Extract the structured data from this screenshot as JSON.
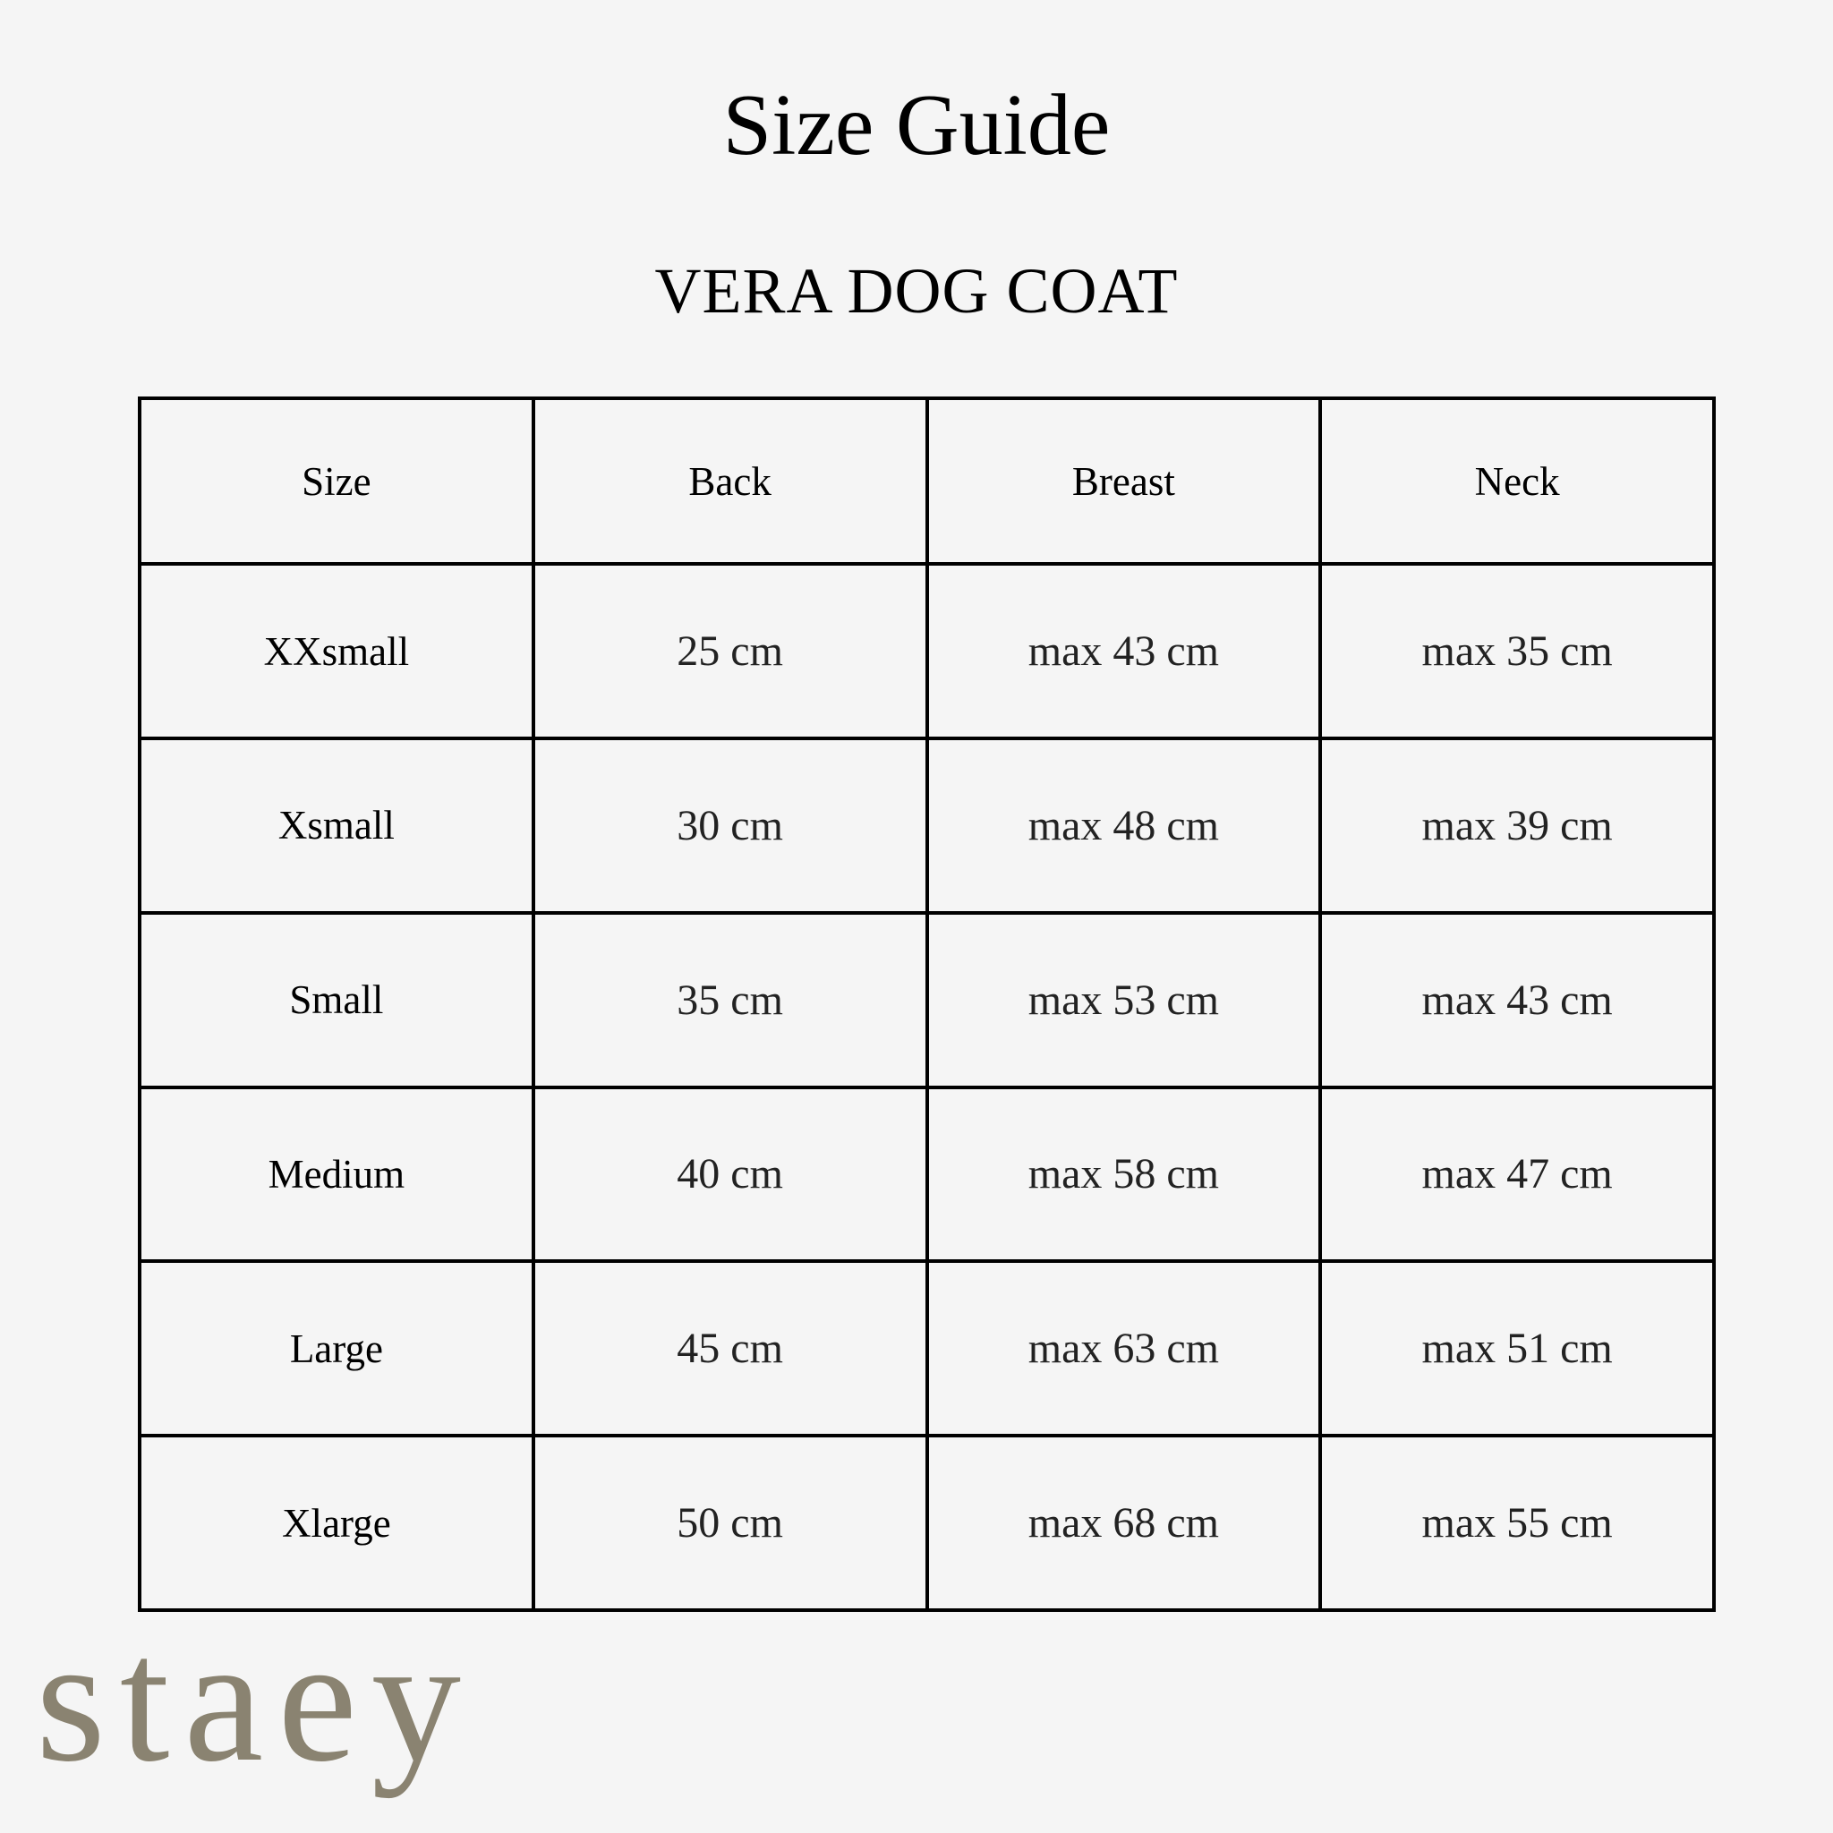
{
  "title": "Size Guide",
  "subtitle": "VERA DOG COAT",
  "table": {
    "headers": [
      "Size",
      "Back",
      "Breast",
      "Neck"
    ],
    "rows": [
      [
        "XXsmall",
        "25 cm",
        "max 43 cm",
        "max 35 cm"
      ],
      [
        "Xsmall",
        "30 cm",
        "max 48 cm",
        "max 39 cm"
      ],
      [
        "Small",
        "35 cm",
        "max 53 cm",
        "max 43 cm"
      ],
      [
        "Medium",
        "40 cm",
        "max 58 cm",
        "max 47 cm"
      ],
      [
        "Large",
        "45 cm",
        "max 63 cm",
        "max 51 cm"
      ],
      [
        "Xlarge",
        "50 cm",
        "max 68 cm",
        "max 55 cm"
      ]
    ]
  },
  "logo": {
    "text": "staey",
    "color": "#8a8371"
  }
}
